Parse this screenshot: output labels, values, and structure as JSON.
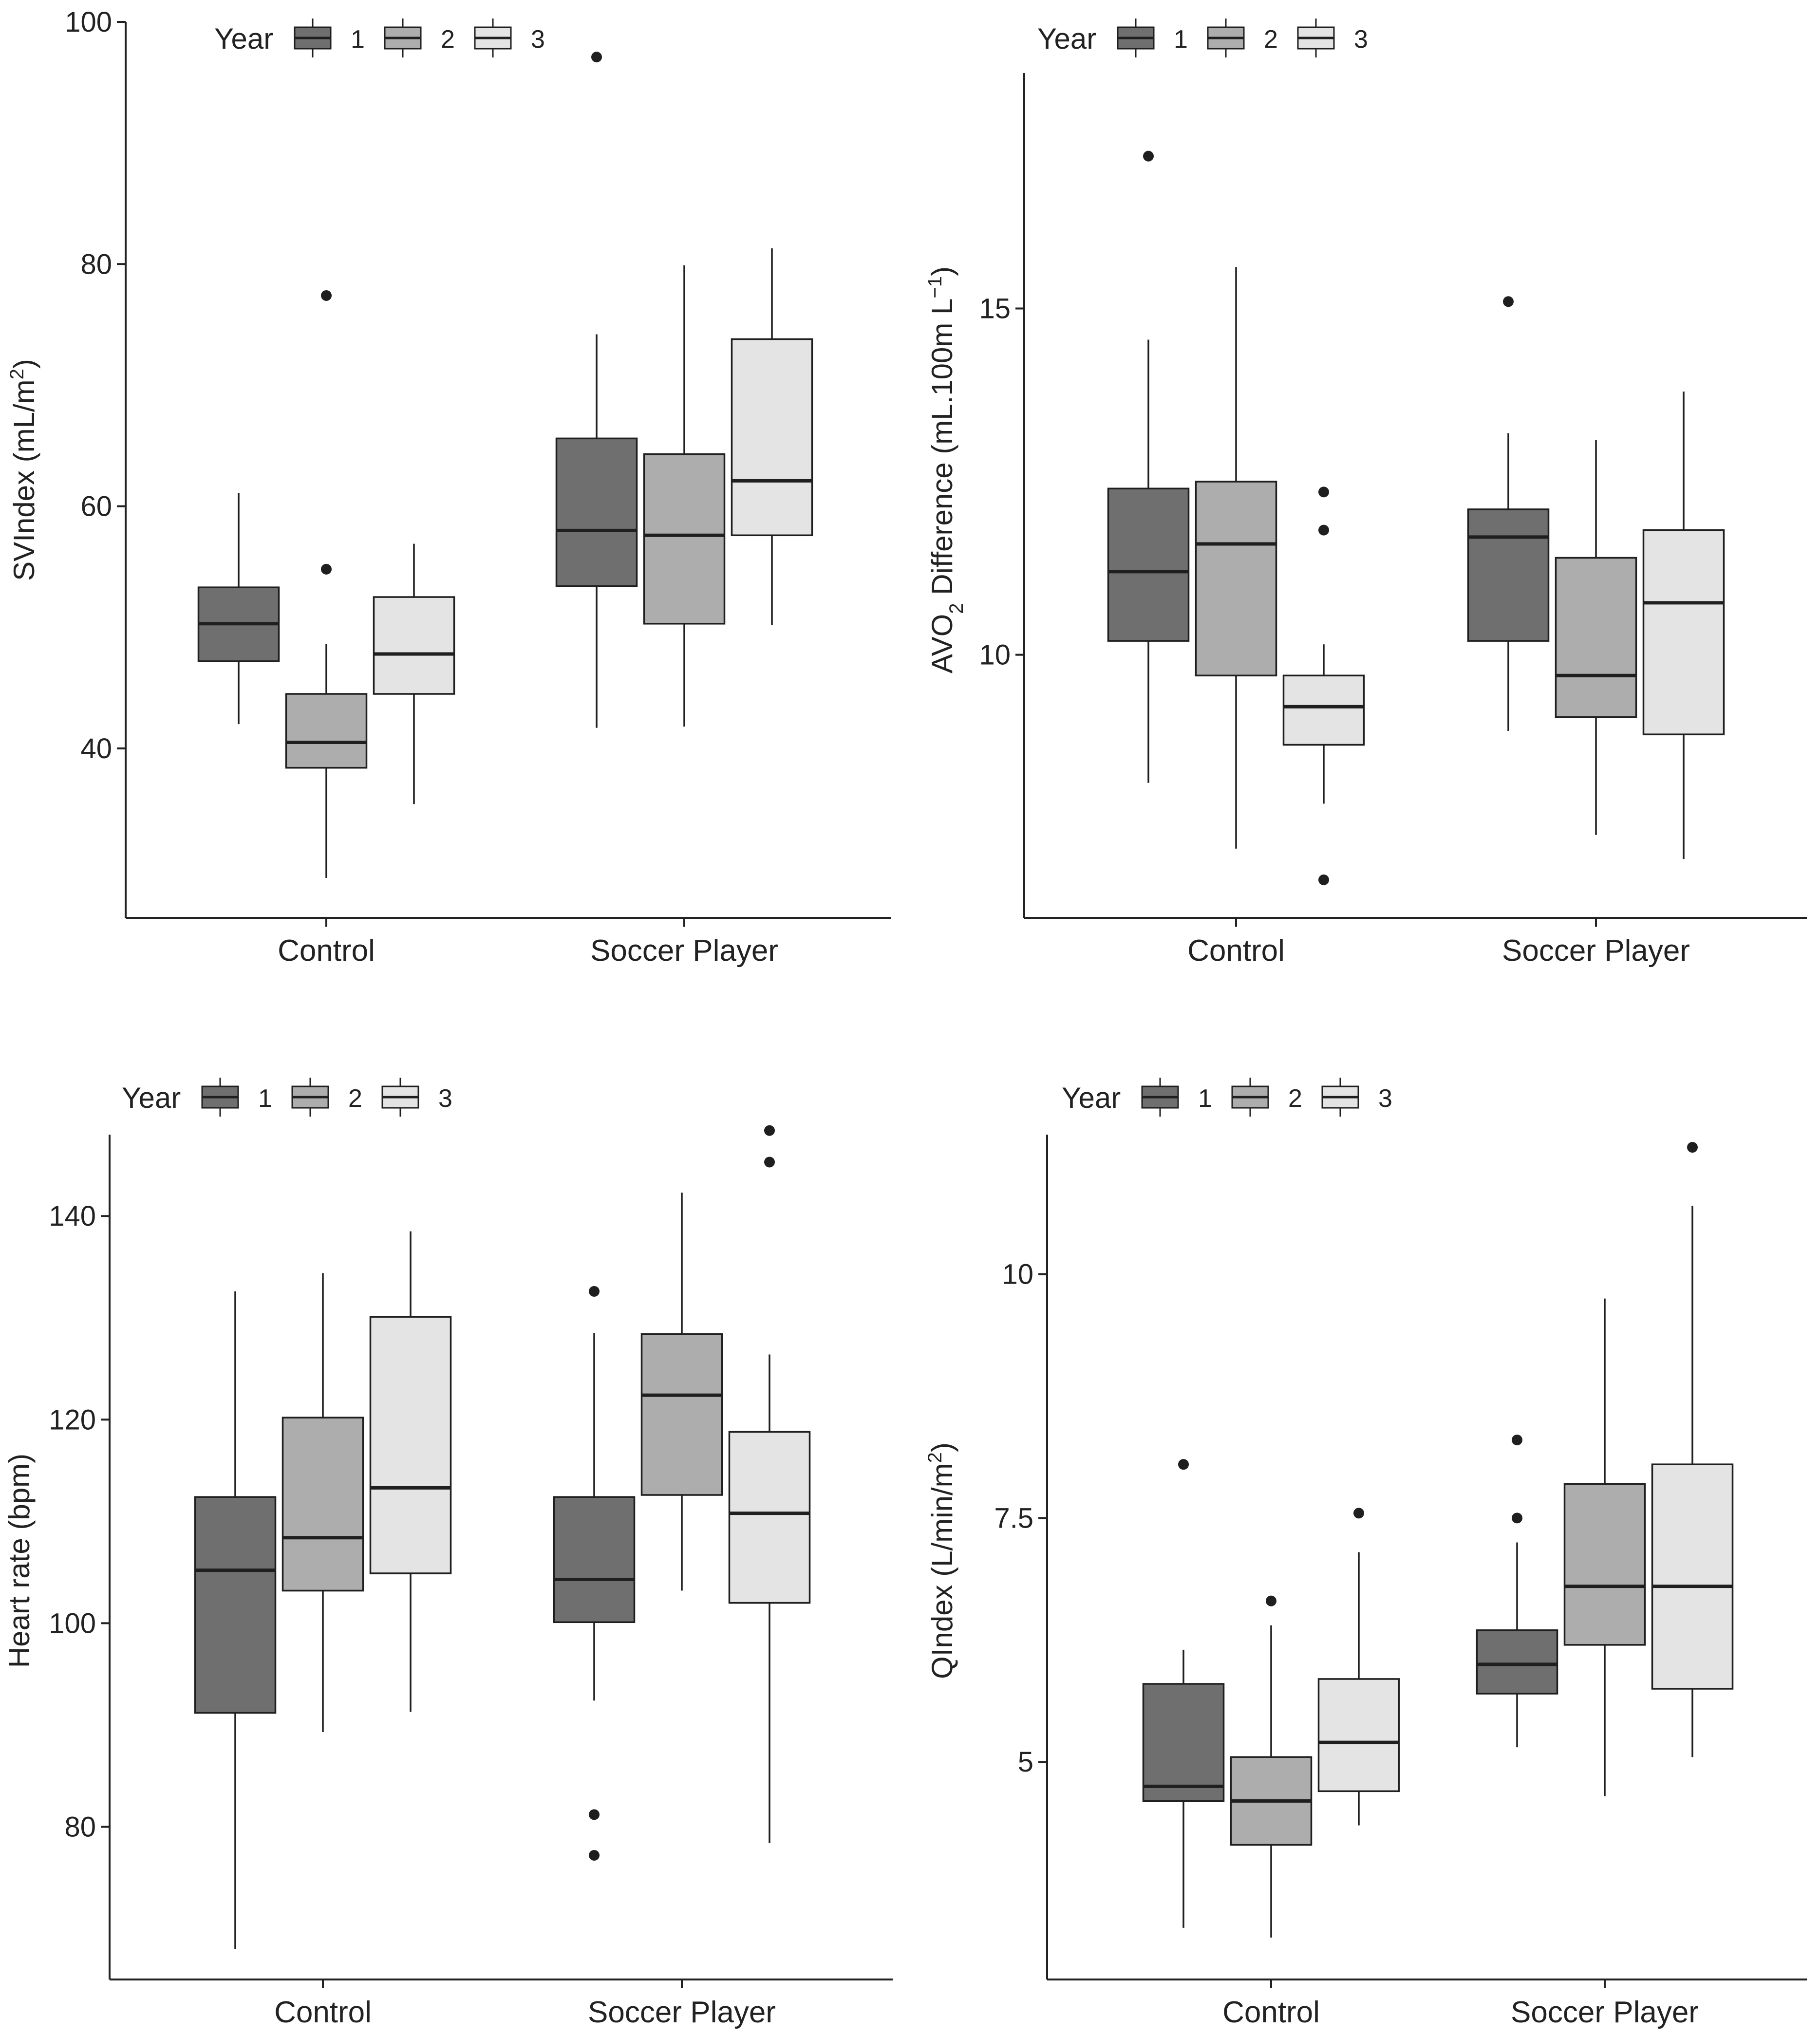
{
  "legend": {
    "title": "Year",
    "labels": [
      "1",
      "2",
      "3"
    ]
  },
  "colors": {
    "year1": "#6f6f6f",
    "year2": "#adadad",
    "year3": "#e4e4e4",
    "stroke": "#1f1f1f",
    "axis": "#222222"
  },
  "chart_data": [
    {
      "type": "boxplot",
      "ylabel": "SVIndex (mL/m",
      "ylabel_sup": "2",
      "ylabel_end": ")",
      "ylim": [
        26,
        100
      ],
      "yticks": [
        40,
        60,
        80,
        100
      ],
      "categories": [
        "Control",
        "Soccer Player"
      ],
      "series": [
        {
          "name": "1",
          "boxes": [
            {
              "min": 42,
              "q1": 47.2,
              "median": 50.3,
              "q3": 53.3,
              "max": 61.1,
              "outliers": []
            },
            {
              "min": 41.7,
              "q1": 53.4,
              "median": 58,
              "q3": 65.6,
              "max": 74.2,
              "outliers": [
                97.1
              ]
            }
          ]
        },
        {
          "name": "2",
          "boxes": [
            {
              "min": 29.3,
              "q1": 38.4,
              "median": 40.5,
              "q3": 44.5,
              "max": 48.6,
              "outliers": [
                54.8,
                77.4
              ]
            },
            {
              "min": 41.8,
              "q1": 50.3,
              "median": 57.6,
              "q3": 64.3,
              "max": 79.9,
              "outliers": []
            }
          ]
        },
        {
          "name": "3",
          "boxes": [
            {
              "min": 35.4,
              "q1": 44.5,
              "median": 47.8,
              "q3": 52.5,
              "max": 56.9,
              "outliers": []
            },
            {
              "min": 50.2,
              "q1": 57.6,
              "median": 62.1,
              "q3": 73.8,
              "max": 81.3,
              "outliers": []
            }
          ]
        }
      ]
    },
    {
      "type": "boxplot",
      "ylabel": "AVO",
      "ylabel_sub": "2",
      "ylabel_mid": " Difference (mL.100m L",
      "ylabel_sup": "−1",
      "ylabel_end": ")",
      "ylim": [
        6.2,
        18.4
      ],
      "yticks": [
        10,
        15
      ],
      "categories": [
        "Control",
        "Soccer Player"
      ],
      "series": [
        {
          "name": "1",
          "boxes": [
            {
              "min": 8.15,
              "q1": 10.2,
              "median": 11.2,
              "q3": 12.4,
              "max": 14.55,
              "outliers": [
                17.2
              ]
            },
            {
              "min": 8.9,
              "q1": 10.2,
              "median": 11.7,
              "q3": 12.1,
              "max": 13.2,
              "outliers": [
                15.1
              ]
            }
          ]
        },
        {
          "name": "2",
          "boxes": [
            {
              "min": 7.2,
              "q1": 9.7,
              "median": 11.6,
              "q3": 12.5,
              "max": 15.6,
              "outliers": []
            },
            {
              "min": 7.4,
              "q1": 9.1,
              "median": 9.7,
              "q3": 11.4,
              "max": 13.1,
              "outliers": []
            }
          ]
        },
        {
          "name": "3",
          "boxes": [
            {
              "min": 7.85,
              "q1": 8.7,
              "median": 9.25,
              "q3": 9.7,
              "max": 10.15,
              "outliers": [
                6.75,
                11.8,
                12.35
              ]
            },
            {
              "min": 7.05,
              "q1": 8.85,
              "median": 10.75,
              "q3": 11.8,
              "max": 13.8,
              "outliers": []
            }
          ]
        }
      ]
    },
    {
      "type": "boxplot",
      "ylabel": "Heart rate (bpm)",
      "ylim": [
        65,
        148
      ],
      "yticks": [
        80,
        100,
        120,
        140
      ],
      "categories": [
        "Control",
        "Soccer Player"
      ],
      "series": [
        {
          "name": "1",
          "boxes": [
            {
              "min": 68,
              "q1": 91.2,
              "median": 105.2,
              "q3": 112.4,
              "max": 132.6,
              "outliers": []
            },
            {
              "min": 92.4,
              "q1": 100.1,
              "median": 104.3,
              "q3": 112.4,
              "max": 128.5,
              "outliers": [
                77.2,
                81.2,
                132.6
              ]
            }
          ]
        },
        {
          "name": "2",
          "boxes": [
            {
              "min": 89.3,
              "q1": 103.2,
              "median": 108.4,
              "q3": 120.2,
              "max": 134.4,
              "outliers": []
            },
            {
              "min": 103.2,
              "q1": 112.6,
              "median": 122.4,
              "q3": 128.4,
              "max": 142.3,
              "outliers": []
            }
          ]
        },
        {
          "name": "3",
          "boxes": [
            {
              "min": 91.3,
              "q1": 104.9,
              "median": 113.3,
              "q3": 130.1,
              "max": 138.5,
              "outliers": []
            },
            {
              "min": 78.4,
              "q1": 102,
              "median": 110.8,
              "q3": 118.8,
              "max": 126.4,
              "outliers": [
                145.3,
                148.4
              ]
            }
          ]
        }
      ]
    },
    {
      "type": "boxplot",
      "ylabel": "QIndex (L/min/m",
      "ylabel_sup": "2",
      "ylabel_end": ")",
      "ylim": [
        2.77,
        11.43
      ],
      "yticks": [
        5.0,
        7.5,
        10.0
      ],
      "categories": [
        "Control",
        "Soccer Player"
      ],
      "series": [
        {
          "name": "1",
          "boxes": [
            {
              "min": 3.3,
              "q1": 4.6,
              "median": 4.75,
              "q3": 5.8,
              "max": 6.15,
              "outliers": [
                8.05
              ]
            },
            {
              "min": 5.15,
              "q1": 5.7,
              "median": 6.0,
              "q3": 6.35,
              "max": 7.25,
              "outliers": [
                7.5,
                8.3
              ]
            }
          ]
        },
        {
          "name": "2",
          "boxes": [
            {
              "min": 3.2,
              "q1": 4.15,
              "median": 4.6,
              "q3": 5.05,
              "max": 6.4,
              "outliers": [
                6.65
              ]
            },
            {
              "min": 4.65,
              "q1": 6.2,
              "median": 6.8,
              "q3": 7.85,
              "max": 9.75,
              "outliers": []
            }
          ]
        },
        {
          "name": "3",
          "boxes": [
            {
              "min": 4.35,
              "q1": 4.7,
              "median": 5.2,
              "q3": 5.85,
              "max": 7.15,
              "outliers": [
                7.55
              ]
            },
            {
              "min": 5.05,
              "q1": 5.75,
              "median": 6.8,
              "q3": 8.05,
              "max": 10.7,
              "outliers": [
                11.3
              ]
            }
          ]
        }
      ]
    }
  ]
}
